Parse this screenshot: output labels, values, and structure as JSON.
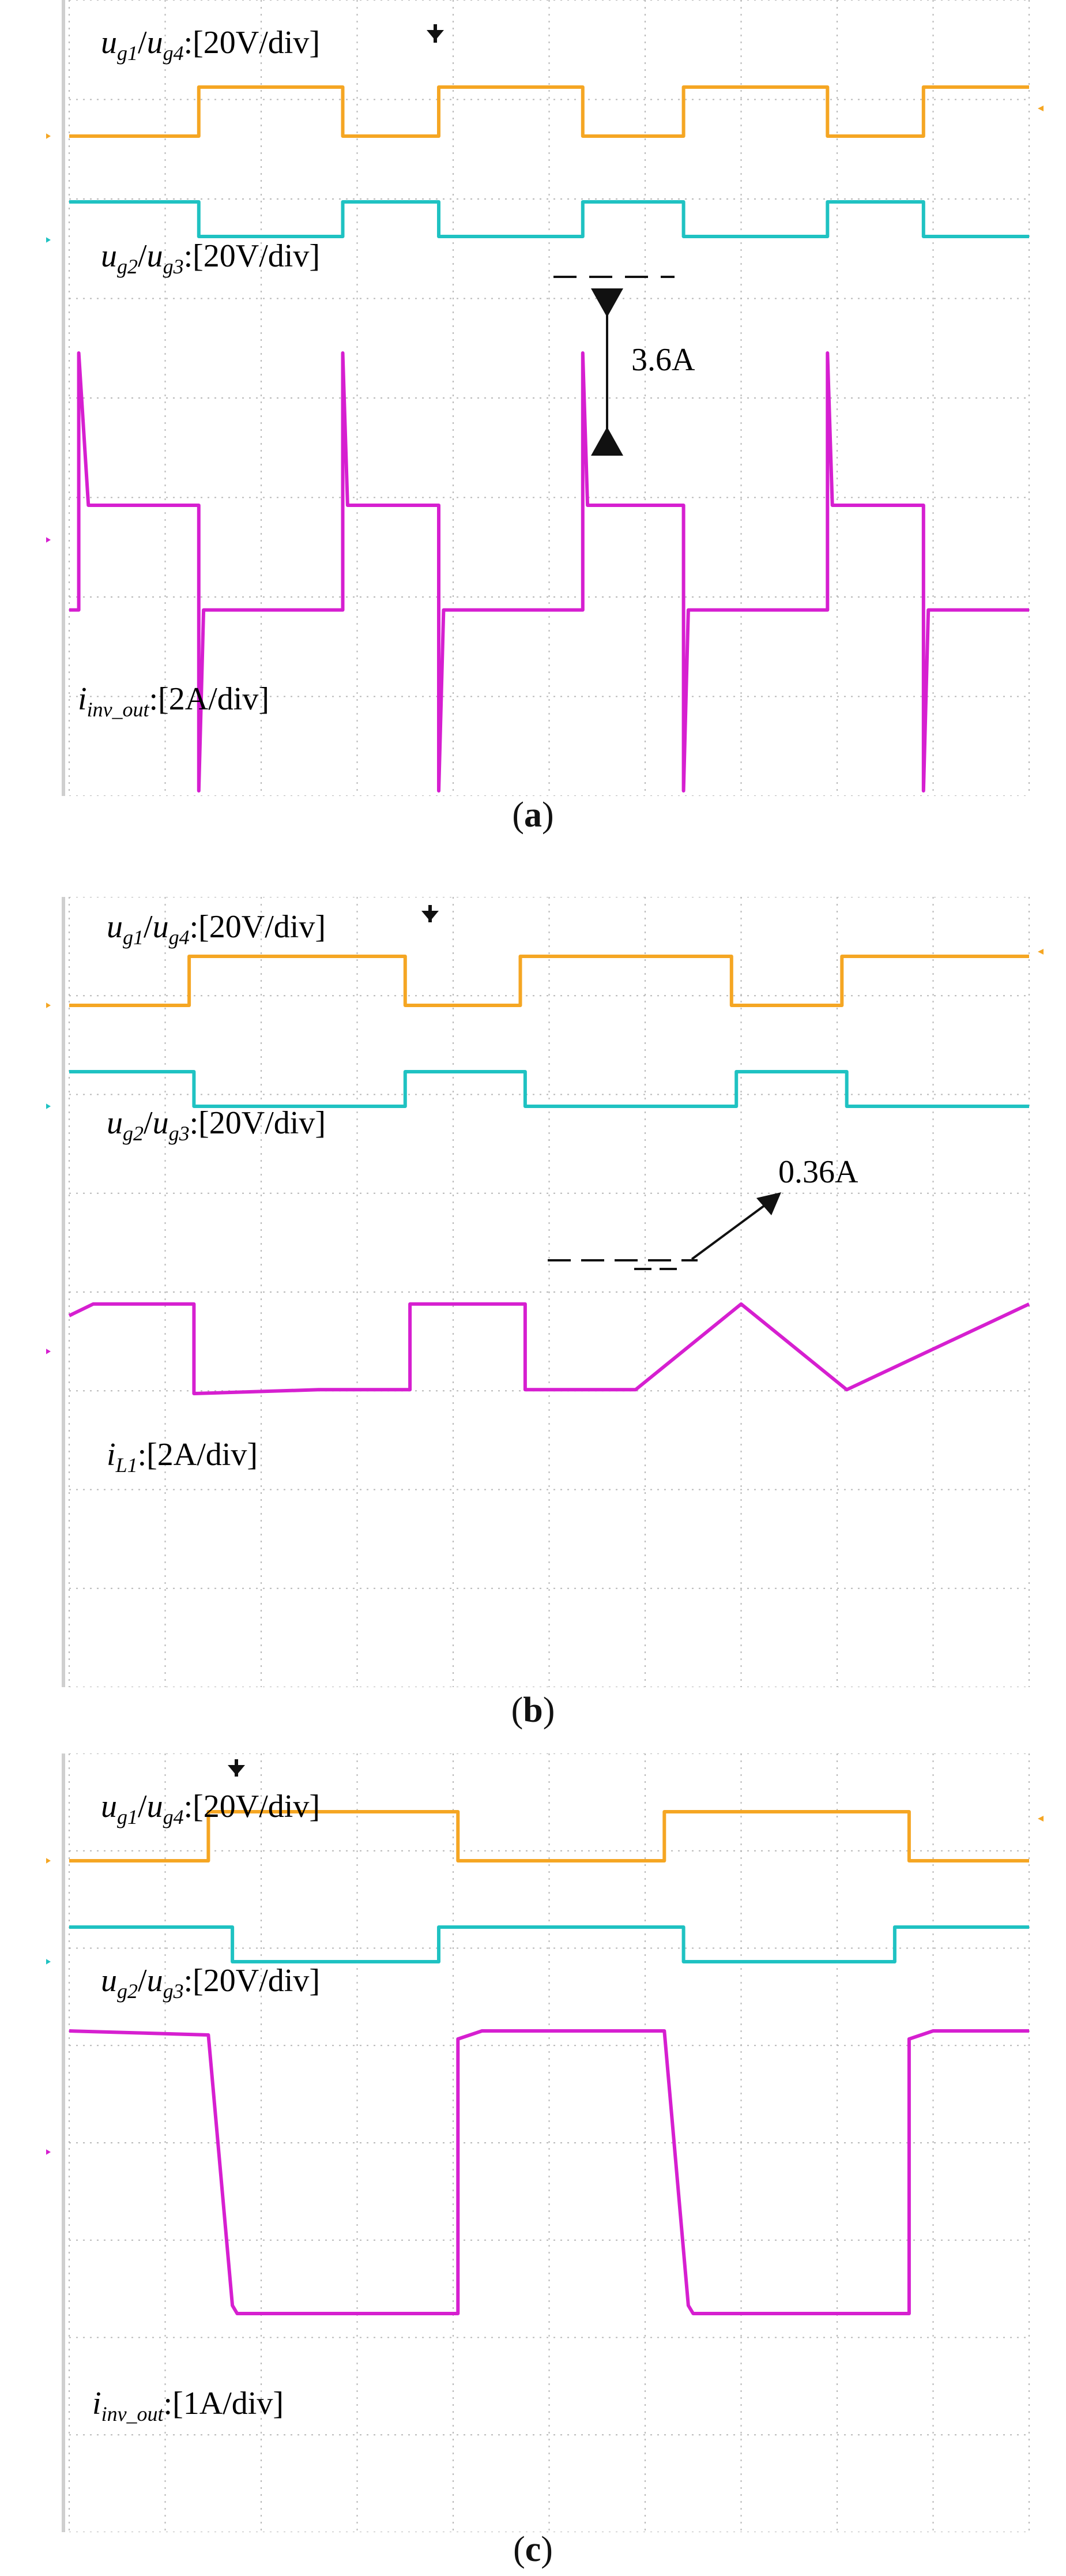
{
  "colors": {
    "ch1": "#f5a623",
    "ch2": "#1fc2c2",
    "ch3": "#d61fd0",
    "grid": "#b7b7b7",
    "marker": "#111111"
  },
  "figure": {
    "panels": [
      {
        "id": "a",
        "caption": {
          "open": "(",
          "letter": "a",
          "close": ")"
        },
        "channel_markers": [
          "1",
          "2",
          "3"
        ],
        "labels": {
          "ch1": {
            "sym1": "u",
            "sub1": "g1",
            "sep": "/",
            "sym2": "u",
            "sub2": "g4",
            "scale": ":[20V/div]"
          },
          "ch2": {
            "sym1": "u",
            "sub1": "g2",
            "sep": "/",
            "sym2": "u",
            "sub2": "g3",
            "scale": ":[20V/div]"
          },
          "ch3": {
            "sym": "i",
            "sub": "inv_out",
            "scale": ":[2A/div]"
          }
        },
        "annotation": "3.6A"
      },
      {
        "id": "b",
        "caption": {
          "open": "(",
          "letter": "b",
          "close": ")"
        },
        "channel_markers": [
          "1",
          "2",
          "3"
        ],
        "labels": {
          "ch1": {
            "sym1": "u",
            "sub1": "g1",
            "sep": "/",
            "sym2": "u",
            "sub2": "g4",
            "scale": ":[20V/div]"
          },
          "ch2": {
            "sym1": "u",
            "sub1": "g2",
            "sep": "/",
            "sym2": "u",
            "sub2": "g3",
            "scale": ":[20V/div]"
          },
          "ch3": {
            "sym": "i",
            "sub": "L1",
            "scale": ":[2A/div]"
          }
        },
        "annotation": "0.36A"
      },
      {
        "id": "c",
        "caption": {
          "open": "(",
          "letter": "c",
          "close": ")"
        },
        "channel_markers": [
          "1",
          "2",
          "3"
        ],
        "labels": {
          "ch1": {
            "sym1": "u",
            "sub1": "g1",
            "sep": "/",
            "sym2": "u",
            "sub2": "g4",
            "scale": ":[20V/div]"
          },
          "ch2": {
            "sym1": "u",
            "sub1": "g2",
            "sep": "/",
            "sym2": "u",
            "sub2": "g3",
            "scale": ":[20V/div]"
          },
          "ch3": {
            "sym": "i",
            "sub": "inv_out",
            "scale": ":[1A/div]"
          }
        },
        "annotation": ""
      }
    ]
  },
  "chart_data": [
    {
      "type": "line",
      "title": "(a)",
      "x_unit": "div",
      "xlim": [
        0,
        10
      ],
      "series": [
        {
          "name": "ug1/ug4",
          "scale": "20V/div",
          "color": "#f5a623",
          "x": [
            0,
            1.35,
            1.35,
            2.85,
            2.85,
            3.85,
            3.85,
            5.35,
            5.35,
            6.4,
            6.4,
            7.9,
            7.9,
            8.9,
            8.9,
            10
          ],
          "y": [
            0,
            0,
            1,
            1,
            0,
            0,
            1,
            1,
            0,
            0,
            1,
            1,
            0,
            0,
            1,
            1
          ]
        },
        {
          "name": "ug2/ug3",
          "scale": "20V/div",
          "color": "#1fc2c2",
          "x": [
            0,
            1.35,
            1.35,
            2.85,
            2.85,
            3.85,
            3.85,
            5.35,
            5.35,
            6.4,
            6.4,
            7.9,
            7.9,
            8.9,
            8.9,
            10
          ],
          "y": [
            1,
            1,
            0,
            0,
            1,
            1,
            0,
            0,
            1,
            1,
            0,
            0,
            1,
            1,
            0,
            0
          ]
        },
        {
          "name": "iinv_out",
          "scale": "2A/div",
          "color": "#d61fd0",
          "x": [
            0,
            0.1,
            0.1,
            0.2,
            1.35,
            1.35,
            1.4,
            2.85,
            2.85,
            2.9,
            3.85,
            3.85,
            3.9,
            5.35,
            5.35,
            5.4,
            6.4,
            6.4,
            6.45,
            7.9,
            7.9,
            7.95,
            8.9,
            8.9,
            8.95,
            10
          ],
          "y": [
            -0.5,
            -0.5,
            2.2,
            0.6,
            0.6,
            -2.4,
            -0.5,
            -0.5,
            2.2,
            0.6,
            0.6,
            -2.4,
            -0.5,
            -0.5,
            2.2,
            0.6,
            0.6,
            -2.4,
            -0.5,
            -0.5,
            2.2,
            0.6,
            0.6,
            -2.4,
            -0.5,
            -0.5
          ]
        }
      ],
      "annotations": [
        "3.6A"
      ]
    },
    {
      "type": "line",
      "title": "(b)",
      "x_unit": "div",
      "xlim": [
        0,
        10
      ],
      "series": [
        {
          "name": "ug1/ug4",
          "scale": "20V/div",
          "color": "#f5a623",
          "x": [
            0,
            1.25,
            1.25,
            3.5,
            3.5,
            4.7,
            4.7,
            6.9,
            6.9,
            8.05,
            8.05,
            10
          ],
          "y": [
            0,
            0,
            1,
            1,
            0,
            0,
            1,
            1,
            0,
            0,
            1,
            1
          ]
        },
        {
          "name": "ug2/ug3",
          "scale": "20V/div",
          "color": "#1fc2c2",
          "x": [
            0,
            1.3,
            1.3,
            3.5,
            3.5,
            4.75,
            4.75,
            6.95,
            6.95,
            8.1,
            8.1,
            10
          ],
          "y": [
            1,
            1,
            0,
            0,
            1,
            1,
            0,
            0,
            1,
            1,
            0,
            0
          ]
        },
        {
          "name": "iL1",
          "scale": "2A/div",
          "color": "#d61fd0",
          "x": [
            0,
            0.25,
            1.3,
            1.3,
            2.6,
            3.55,
            3.55,
            4.75,
            4.75,
            5.9,
            7.0,
            7.0,
            8.1,
            8.1,
            10
          ],
          "y": [
            0.4,
            0.55,
            0.55,
            -0.6,
            -0.55,
            -0.55,
            0.55,
            0.55,
            -0.55,
            -0.55,
            0.55,
            0.55,
            -0.55,
            -0.55,
            0.55
          ]
        }
      ],
      "annotations": [
        "0.36A"
      ]
    },
    {
      "type": "line",
      "title": "(c)",
      "x_unit": "div",
      "xlim": [
        0,
        10
      ],
      "series": [
        {
          "name": "ug1/ug4",
          "scale": "20V/div",
          "color": "#f5a623",
          "x": [
            0,
            1.45,
            1.45,
            4.05,
            4.05,
            6.2,
            6.2,
            8.75,
            8.75,
            10
          ],
          "y": [
            0,
            0,
            1,
            1,
            0,
            0,
            1,
            1,
            0,
            0
          ]
        },
        {
          "name": "ug2/ug3",
          "scale": "20V/div",
          "color": "#1fc2c2",
          "x": [
            0,
            1.7,
            1.7,
            3.85,
            3.85,
            6.4,
            6.4,
            8.6,
            8.6,
            10
          ],
          "y": [
            1,
            1,
            0,
            0,
            1,
            1,
            0,
            0,
            1,
            1
          ]
        },
        {
          "name": "iinv_out",
          "scale": "1A/div",
          "color": "#d61fd0",
          "x": [
            0,
            1.45,
            1.7,
            1.75,
            4.05,
            4.05,
            4.3,
            6.2,
            6.45,
            6.5,
            8.75,
            8.75,
            9.0,
            10
          ],
          "y": [
            1.6,
            1.55,
            -1.8,
            -1.9,
            -1.9,
            1.5,
            1.6,
            1.6,
            -1.8,
            -1.9,
            -1.9,
            1.5,
            1.6,
            1.6
          ]
        }
      ],
      "annotations": []
    }
  ]
}
